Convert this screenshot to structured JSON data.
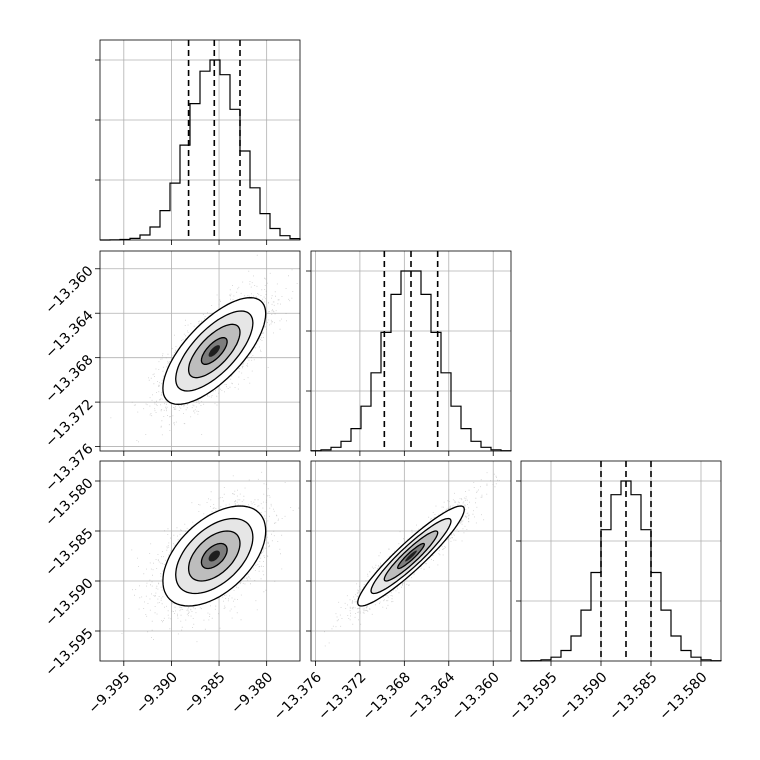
{
  "chart_data": {
    "type": "corner",
    "parameters": [
      {
        "ticks": [
          -9.395,
          -9.39,
          -9.385,
          -9.38
        ],
        "tick_labels": [
          "−9.395",
          "−9.390",
          "−9.385",
          "−9.380"
        ],
        "range": [
          -9.3975,
          -9.3765
        ],
        "mean": -9.3855,
        "sigma": 0.0027,
        "quantiles": [
          -9.3882,
          -9.3855,
          -9.3828
        ]
      },
      {
        "ticks": [
          -13.376,
          -13.372,
          -13.368,
          -13.364,
          -13.36
        ],
        "tick_labels": [
          "−13.376",
          "−13.372",
          "−13.368",
          "−13.364",
          "−13.360"
        ],
        "range": [
          -13.3764,
          -13.3584
        ],
        "mean": -13.3674,
        "sigma": 0.0024,
        "quantiles": [
          -13.3698,
          -13.3674,
          -13.365
        ]
      },
      {
        "ticks": [
          -13.595,
          -13.59,
          -13.585,
          -13.58
        ],
        "tick_labels": [
          "−13.595",
          "−13.590",
          "−13.585",
          "−13.580"
        ],
        "range": [
          -13.598,
          -13.578
        ],
        "mean": -13.5875,
        "sigma": 0.0025,
        "quantiles": [
          -13.59,
          -13.5875,
          -13.585
        ]
      }
    ],
    "correlations": {
      "1_0": 0.7,
      "2_0": 0.5,
      "2_1": 0.93
    },
    "histogram_bins": 20,
    "quantile_levels": [
      0.16,
      0.5,
      0.84
    ],
    "contour_levels_sigma": [
      0.5,
      1.0,
      1.5,
      2.0
    ],
    "grid": true,
    "colors": {
      "line": "#000000",
      "grid": "#b0b0b0",
      "point": "#999999"
    }
  }
}
